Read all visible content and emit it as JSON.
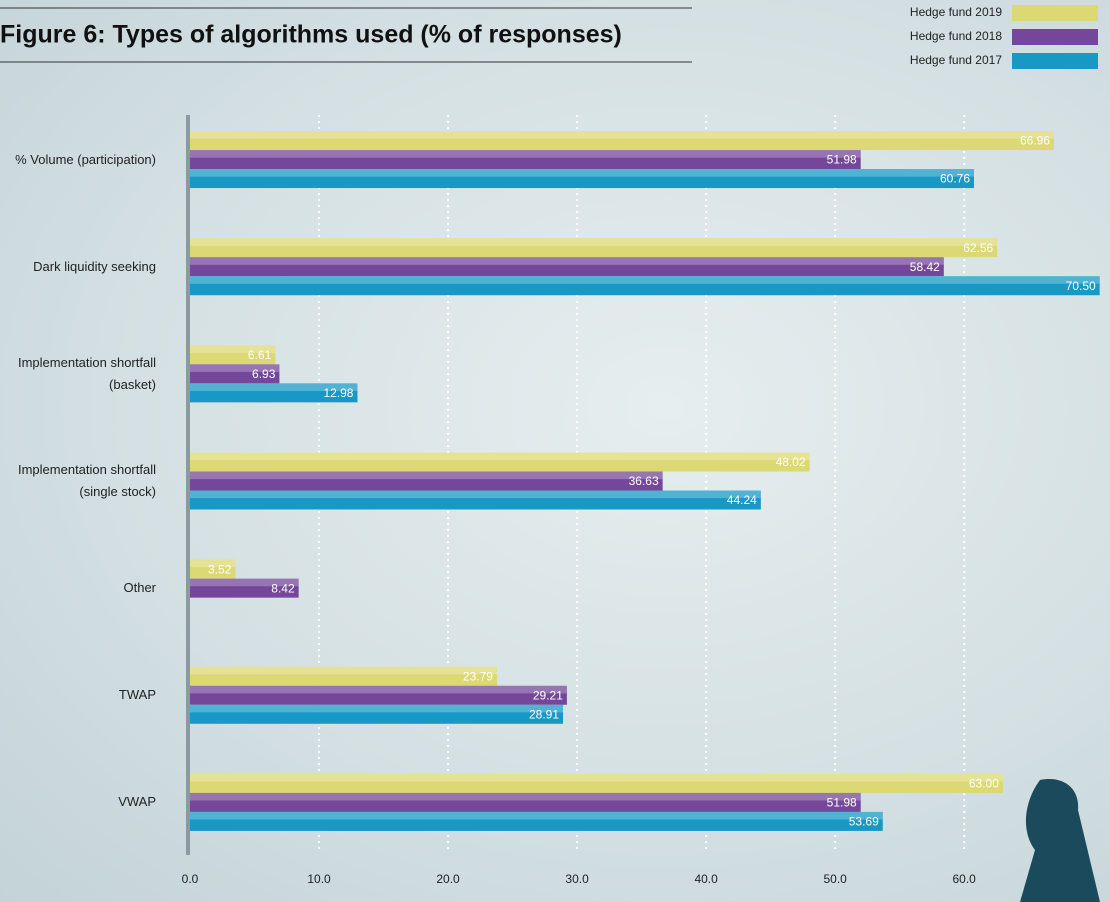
{
  "chart_data": {
    "type": "hbar",
    "title": "Figure 6: Types of algorithms used (% of responses)",
    "categories": [
      "% Volume (participation)",
      "Dark liquidity seeking",
      "Implementation shortfall\n(basket)",
      "Implementation shortfall\n(single stock)",
      "Other",
      "TWAP",
      "VWAP"
    ],
    "series": [
      {
        "name": "Hedge fund 2019",
        "color": "#dcd873",
        "values": [
          66.96,
          62.56,
          6.61,
          48.02,
          3.52,
          23.79,
          63.0
        ],
        "value_labels": [
          "66.96",
          "62.56",
          "6.61",
          "48.02",
          "3.52",
          "23.79",
          "63.00"
        ]
      },
      {
        "name": "Hedge fund 2018",
        "color": "#74479a",
        "values": [
          51.98,
          58.42,
          6.93,
          36.63,
          8.42,
          29.21,
          51.98
        ],
        "value_labels": [
          "51.98",
          "58.42",
          "6.93",
          "36.63",
          "8.42",
          "29.21",
          "51.98"
        ]
      },
      {
        "name": "Hedge fund 2017",
        "color": "#1898c4",
        "values": [
          60.76,
          70.5,
          12.98,
          44.24,
          null,
          28.91,
          53.69
        ],
        "value_labels": [
          "60.76",
          "70.50",
          "12.98",
          "44.24",
          null,
          "28.91",
          "53.69"
        ]
      }
    ],
    "xlim": [
      0,
      71.3
    ],
    "xticks": [
      {
        "value": 0,
        "label": "0.0"
      },
      {
        "value": 10,
        "label": "10.0"
      },
      {
        "value": 20,
        "label": "20.0"
      },
      {
        "value": 30,
        "label": "30.0"
      },
      {
        "value": 40,
        "label": "40.0"
      },
      {
        "value": 50,
        "label": "50.0"
      },
      {
        "value": 60,
        "label": "60.0"
      }
    ],
    "grid": true,
    "legend_position": "top-right"
  }
}
